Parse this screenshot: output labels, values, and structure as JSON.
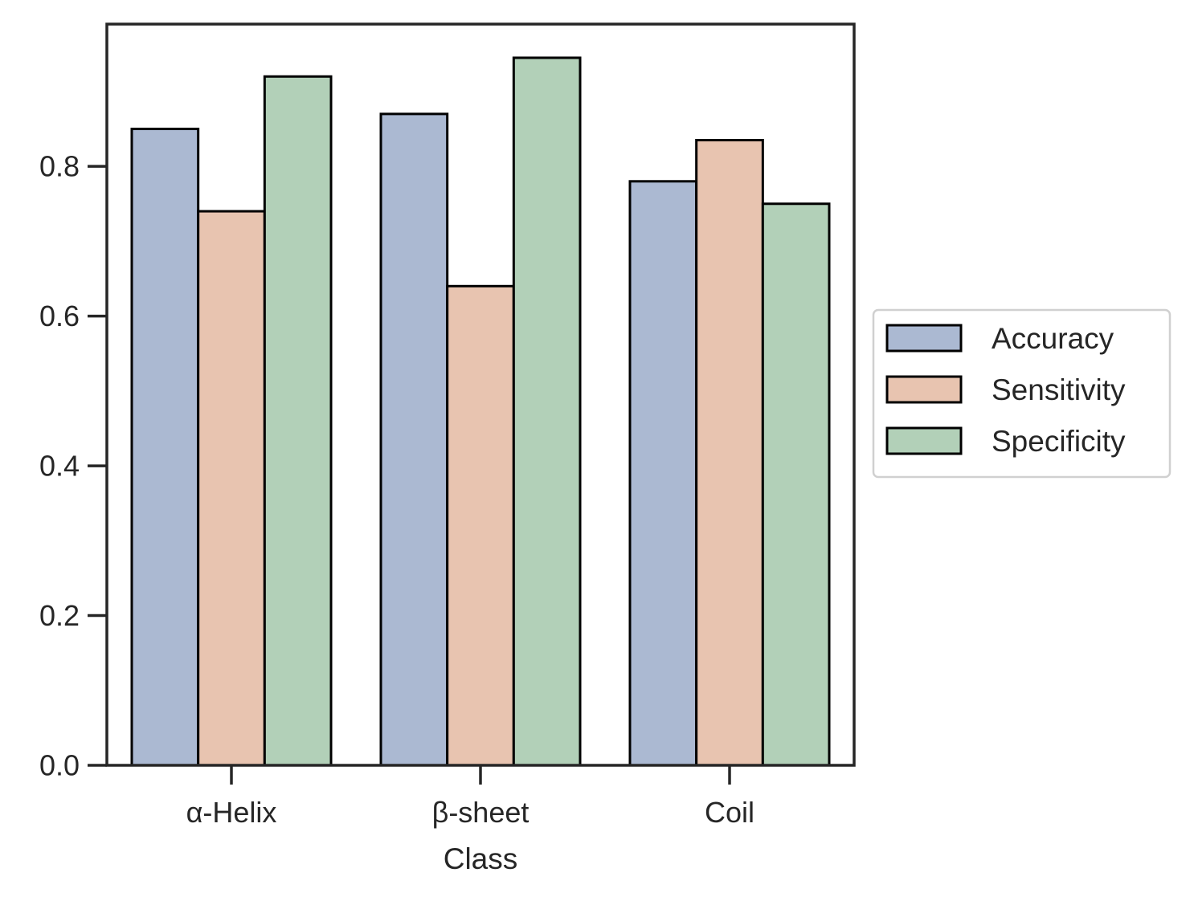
{
  "chart_data": {
    "type": "bar",
    "categories": [
      "α-Helix",
      "β-sheet",
      "Coil"
    ],
    "series": [
      {
        "name": "Accuracy",
        "values": [
          0.85,
          0.87,
          0.78
        ],
        "color": "#abb9d2"
      },
      {
        "name": "Sensitivity",
        "values": [
          0.74,
          0.64,
          0.835
        ],
        "color": "#e8c4b0"
      },
      {
        "name": "Specificity",
        "values": [
          0.92,
          0.945,
          0.75
        ],
        "color": "#b2d0b8"
      }
    ],
    "xlabel": "Class",
    "ylabel": "",
    "ylim": [
      0,
      0.99
    ],
    "yticks": [
      0.0,
      0.2,
      0.4,
      0.6,
      0.8
    ],
    "ytick_labels": [
      "0.0",
      "0.2",
      "0.4",
      "0.6",
      "0.8"
    ],
    "grid": false,
    "legend_position": "center-right-outside",
    "bar_edge_color": "#000000",
    "axis_color": "#262626"
  }
}
